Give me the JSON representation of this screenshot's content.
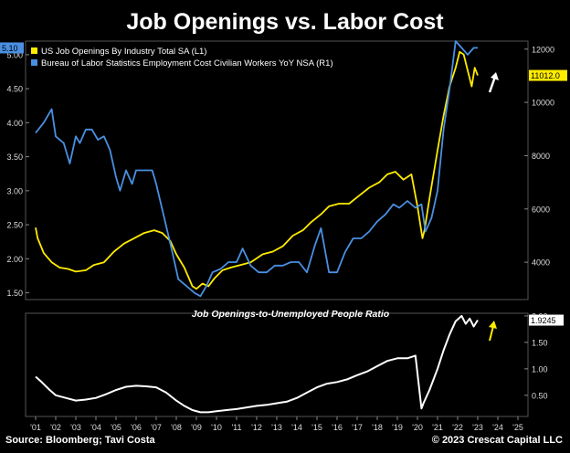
{
  "title": "Job Openings vs. Labor Cost",
  "footer": {
    "source": "Source: Bloomberg; Tavi Costa",
    "copyright": "© 2023 Crescat Capital LLC"
  },
  "colors": {
    "background": "#000000",
    "job_openings": "#FFEB00",
    "eci": "#4A90E2",
    "ratio": "#FFFFFF",
    "annotation_up": "#FFFFFF",
    "annotation_up_ratio": "#FFEB00"
  },
  "chart_data": [
    {
      "type": "line",
      "title": "",
      "x_tick_labels": [
        "'01",
        "'02",
        "'03",
        "'04",
        "'05",
        "'06",
        "'07",
        "'08",
        "'09",
        "'10",
        "'11",
        "'12",
        "'13",
        "'14",
        "'15",
        "'16",
        "'17",
        "'18",
        "'19",
        "'20",
        "'21",
        "'22",
        "'23",
        "'24",
        "'25"
      ],
      "left_axis": {
        "ylim": [
          1.4,
          5.2
        ],
        "ticks": [
          1.5,
          2.0,
          2.5,
          3.0,
          3.5,
          4.0,
          4.5,
          5.0
        ],
        "tick_labels": [
          "1.50",
          "2.00",
          "2.50",
          "3.00",
          "3.50",
          "4.00",
          "4.50",
          "5.00"
        ]
      },
      "right_axis": {
        "ylim": [
          2600,
          12300
        ],
        "ticks": [
          4000,
          6000,
          8000,
          10000,
          12000
        ],
        "tick_labels": [
          "4000",
          "6000",
          "8000",
          "10000",
          "12000"
        ]
      },
      "legend": [
        "US Job Openings By Industry Total SA  (L1)",
        "Bureau of Labor Statistics Employment Cost Civilian Workers YoY NSA  (R1)"
      ],
      "legend_placement": "top-left",
      "series": [
        {
          "name": "US Job Openings By Industry Total SA  (L1)",
          "axis": "right",
          "color": "#FFEB00",
          "last_value_label": "11012.0",
          "x": [
            2001.0,
            2001.1,
            2001.4,
            2001.8,
            2002.2,
            2002.6,
            2003.0,
            2003.5,
            2003.9,
            2004.4,
            2004.9,
            2005.4,
            2005.9,
            2006.4,
            2006.9,
            2007.3,
            2007.7,
            2008.0,
            2008.4,
            2008.8,
            2009.0,
            2009.3,
            2009.6,
            2009.9,
            2010.3,
            2010.7,
            2011.2,
            2011.7,
            2012.3,
            2012.8,
            2013.3,
            2013.8,
            2014.3,
            2014.7,
            2015.2,
            2015.6,
            2016.1,
            2016.6,
            2017.1,
            2017.6,
            2018.1,
            2018.5,
            2018.9,
            2019.3,
            2019.7,
            2020.0,
            2020.25,
            2020.35,
            2020.6,
            2021.0,
            2021.3,
            2021.6,
            2021.9,
            2022.1,
            2022.3,
            2022.5,
            2022.7,
            2022.85,
            2023.0
          ],
          "y": [
            5300,
            4900,
            4350,
            4000,
            3800,
            3750,
            3650,
            3700,
            3900,
            4000,
            4400,
            4700,
            4900,
            5100,
            5200,
            5100,
            4800,
            4300,
            3800,
            3100,
            3000,
            3200,
            3100,
            3400,
            3700,
            3800,
            3900,
            4000,
            4300,
            4400,
            4600,
            5000,
            5200,
            5500,
            5800,
            6100,
            6200,
            6200,
            6500,
            6800,
            7000,
            7300,
            7400,
            7100,
            7300,
            6100,
            4900,
            5200,
            6400,
            8200,
            9500,
            10600,
            11300,
            11900,
            11800,
            11200,
            10600,
            11300,
            11012
          ]
        },
        {
          "name": "Bureau of Labor Statistics Employment Cost Civilian Workers YoY NSA  (R1)",
          "axis": "left",
          "color": "#4A90E2",
          "last_value_label": "5.10",
          "x": [
            2001.0,
            2001.4,
            2001.8,
            2002.0,
            2002.4,
            2002.7,
            2003.0,
            2003.2,
            2003.5,
            2003.8,
            2004.1,
            2004.4,
            2004.7,
            2005.0,
            2005.2,
            2005.5,
            2005.8,
            2006.0,
            2006.4,
            2006.8,
            2007.0,
            2007.4,
            2007.8,
            2008.1,
            2008.5,
            2008.9,
            2009.2,
            2009.5,
            2009.8,
            2010.2,
            2010.6,
            2011.0,
            2011.3,
            2011.7,
            2012.1,
            2012.5,
            2012.9,
            2013.3,
            2013.7,
            2014.1,
            2014.5,
            2014.9,
            2015.2,
            2015.6,
            2016.0,
            2016.4,
            2016.8,
            2017.2,
            2017.6,
            2018.0,
            2018.4,
            2018.8,
            2019.1,
            2019.5,
            2019.9,
            2020.2,
            2020.4,
            2020.7,
            2021.0,
            2021.3,
            2021.6,
            2021.9,
            2022.2,
            2022.5,
            2022.8,
            2023.0
          ],
          "y": [
            3.85,
            4.0,
            4.2,
            3.8,
            3.7,
            3.4,
            3.8,
            3.7,
            3.9,
            3.9,
            3.75,
            3.8,
            3.6,
            3.2,
            3.0,
            3.3,
            3.1,
            3.3,
            3.3,
            3.3,
            3.1,
            2.6,
            2.1,
            1.7,
            1.6,
            1.5,
            1.45,
            1.6,
            1.8,
            1.85,
            1.95,
            1.95,
            2.15,
            1.9,
            1.8,
            1.8,
            1.9,
            1.9,
            1.95,
            1.95,
            1.8,
            2.2,
            2.45,
            1.8,
            1.8,
            2.1,
            2.3,
            2.3,
            2.4,
            2.55,
            2.65,
            2.8,
            2.75,
            2.85,
            2.75,
            2.8,
            2.4,
            2.6,
            3.0,
            3.9,
            4.5,
            5.2,
            5.1,
            5.0,
            5.1,
            5.1
          ]
        }
      ]
    },
    {
      "type": "line",
      "title": "Job Openings-to-Unemployed People Ratio",
      "x_tick_labels": [
        "'01",
        "'02",
        "'03",
        "'04",
        "'05",
        "'06",
        "'07",
        "'08",
        "'09",
        "'10",
        "'11",
        "'12",
        "'13",
        "'14",
        "'15",
        "'16",
        "'17",
        "'18",
        "'19",
        "'20",
        "'21",
        "'22",
        "'23",
        "'24",
        "'25"
      ],
      "right_axis": {
        "ylim": [
          0.1,
          2.05
        ],
        "ticks": [
          0.5,
          1.0,
          1.5,
          2.0
        ],
        "tick_labels": [
          "0.50",
          "1.00",
          "1.50",
          "2.00"
        ]
      },
      "series": [
        {
          "axis": "right",
          "color": "#FFFFFF",
          "last_value_label": "1.9245",
          "x": [
            2001.0,
            2001.3,
            2001.7,
            2002.0,
            2002.5,
            2003.0,
            2003.5,
            2004.0,
            2004.5,
            2005.0,
            2005.5,
            2006.0,
            2006.5,
            2007.0,
            2007.5,
            2008.0,
            2008.4,
            2008.8,
            2009.2,
            2009.6,
            2010.0,
            2010.5,
            2011.0,
            2011.5,
            2012.0,
            2012.5,
            2013.0,
            2013.5,
            2014.0,
            2014.5,
            2015.0,
            2015.5,
            2016.0,
            2016.5,
            2017.0,
            2017.5,
            2018.0,
            2018.5,
            2019.0,
            2019.5,
            2019.9,
            2020.2,
            2020.3,
            2020.6,
            2021.0,
            2021.3,
            2021.6,
            2021.9,
            2022.2,
            2022.4,
            2022.6,
            2022.8,
            2023.0
          ],
          "y": [
            0.85,
            0.75,
            0.6,
            0.5,
            0.45,
            0.4,
            0.42,
            0.45,
            0.52,
            0.6,
            0.66,
            0.68,
            0.67,
            0.65,
            0.55,
            0.4,
            0.3,
            0.22,
            0.18,
            0.18,
            0.2,
            0.22,
            0.24,
            0.27,
            0.3,
            0.32,
            0.35,
            0.38,
            0.45,
            0.55,
            0.65,
            0.72,
            0.75,
            0.8,
            0.88,
            0.95,
            1.05,
            1.15,
            1.2,
            1.2,
            1.25,
            0.25,
            0.35,
            0.6,
            1.0,
            1.35,
            1.65,
            1.9,
            2.0,
            1.85,
            1.95,
            1.8,
            1.92
          ]
        }
      ]
    }
  ]
}
